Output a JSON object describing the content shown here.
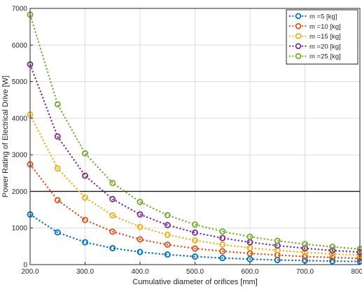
{
  "chart_data": {
    "type": "line",
    "xlabel": "Cumulative diameter of orifices [mm]",
    "ylabel": "Power Rating of Electrical Drive  [W]",
    "xlim": [
      200,
      800
    ],
    "ylim": [
      0,
      7000
    ],
    "x_ticks": [
      "200.0",
      "300.0",
      "400.0",
      "500.0",
      "600.0",
      "700.0",
      "800.0"
    ],
    "y_ticks": [
      "0",
      "1000",
      "2000",
      "3000",
      "4000",
      "5000",
      "6000",
      "7000"
    ],
    "x_tick_values": [
      200,
      300,
      400,
      500,
      600,
      700,
      800
    ],
    "y_tick_values": [
      0,
      1000,
      2000,
      3000,
      4000,
      5000,
      6000,
      7000
    ],
    "grid": true,
    "highlight_line_y": 2000,
    "legend_position": "top-right",
    "x": [
      200,
      250,
      300,
      350,
      400,
      450,
      500,
      550,
      600,
      650,
      700,
      750,
      800
    ],
    "series": [
      {
        "name": "m =5 [kg]",
        "color": "#0072bd",
        "values": [
          1370,
          880,
          610,
          450,
          345,
          275,
          220,
          180,
          150,
          125,
          110,
          95,
          85
        ]
      },
      {
        "name": "m =10 [kg]",
        "color": "#d95319",
        "values": [
          2740,
          1760,
          1220,
          900,
          690,
          545,
          440,
          365,
          305,
          260,
          220,
          195,
          170
        ]
      },
      {
        "name": "m =15 [kg]",
        "color": "#edb120",
        "values": [
          4100,
          2630,
          1830,
          1345,
          1030,
          815,
          660,
          545,
          455,
          390,
          335,
          290,
          255
        ]
      },
      {
        "name": "m =20 [kg]",
        "color": "#7e2f8e",
        "values": [
          5470,
          3500,
          2430,
          1790,
          1370,
          1080,
          875,
          725,
          610,
          520,
          445,
          385,
          340
        ]
      },
      {
        "name": "m =25 [kg]",
        "color": "#77ac30",
        "values": [
          6830,
          4380,
          3040,
          2230,
          1710,
          1350,
          1095,
          905,
          760,
          650,
          560,
          485,
          425
        ]
      }
    ]
  }
}
